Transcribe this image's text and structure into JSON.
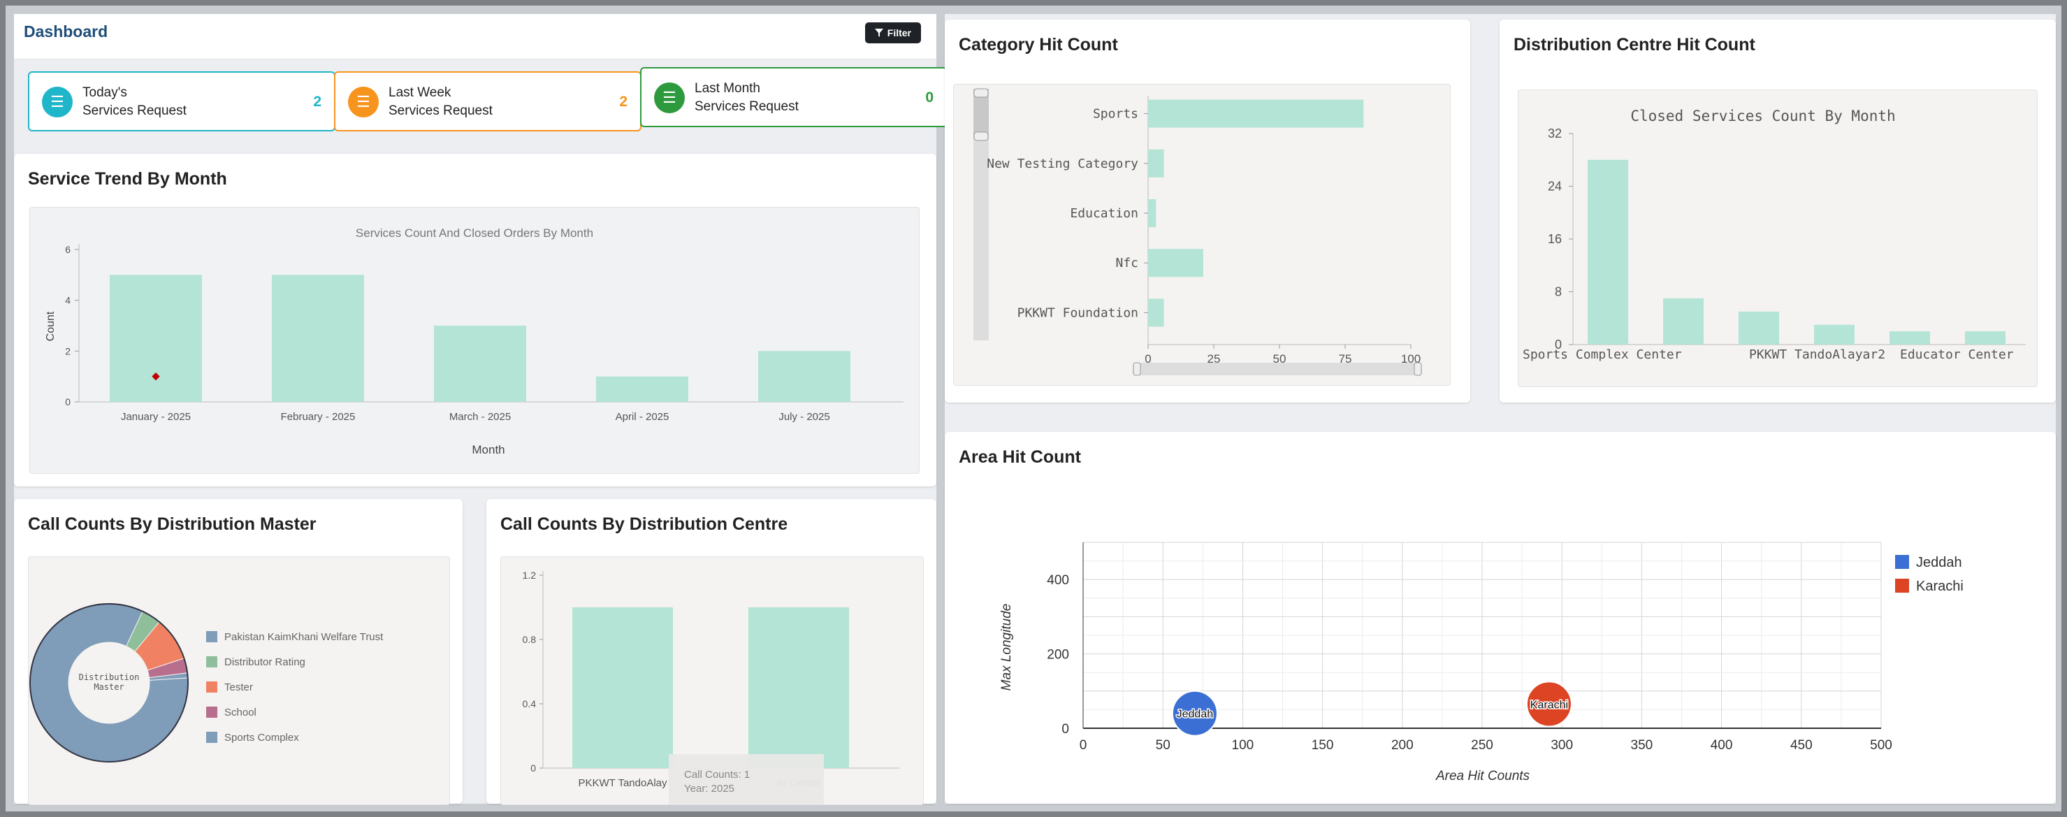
{
  "dashboard": {
    "title": "Dashboard",
    "filter_label": "Filter"
  },
  "stats": [
    {
      "line1": "Today's",
      "line2": "Services Request",
      "value": "2",
      "color": "#1eb6c8"
    },
    {
      "line1": "Last Week",
      "line2": "Services Request",
      "value": "2",
      "color": "#f7941d"
    },
    {
      "line1": "Last Month",
      "line2": "Services Request",
      "value": "0",
      "color": "#2e9a3e"
    }
  ],
  "service_trend": {
    "card_title": "Service Trend By Month",
    "chart_data": {
      "type": "bar",
      "title": "Services Count And Closed Orders By Month",
      "xlabel": "Month",
      "ylabel": "Count",
      "categories": [
        "January - 2025",
        "February - 2025",
        "March - 2025",
        "April - 2025",
        "July - 2025"
      ],
      "values": [
        5,
        5,
        3,
        1,
        2
      ],
      "marker": {
        "category": "January - 2025",
        "value": 1,
        "color": "#c00000"
      },
      "ylim": [
        0,
        6
      ],
      "yticks": [
        0,
        2,
        4,
        6
      ],
      "bar_color": "#b3e4d6"
    }
  },
  "call_master": {
    "card_title": "Call Counts By Distribution Master",
    "chart_data": {
      "type": "pie",
      "center_label_line1": "Distribution",
      "center_label_line2": "Master",
      "slices": [
        {
          "name": "Pakistan KaimKhani Welfare Trust",
          "value": 83,
          "color": "#7f9cb8"
        },
        {
          "name": "Distributor Rating",
          "value": 4,
          "color": "#8fbf9a"
        },
        {
          "name": "Tester",
          "value": 9,
          "color": "#f08263"
        },
        {
          "name": "School",
          "value": 3,
          "color": "#b86f8e"
        },
        {
          "name": "Sports Complex",
          "value": 1,
          "color": "#7f9cb8"
        }
      ]
    }
  },
  "call_centre": {
    "card_title": "Call Counts By Distribution Centre",
    "chart_data": {
      "type": "bar",
      "categories": [
        "PKKWT TandoAlayar2",
        "Educator Center"
      ],
      "category_labels": [
        "PKKWT TandoAlay",
        "er Center"
      ],
      "values": [
        1,
        1
      ],
      "ylim": [
        0,
        1.2
      ],
      "yticks": [
        0,
        0.4,
        0.8,
        1.2
      ],
      "bar_color": "#b3e4d6"
    },
    "tooltip": {
      "line1": "Call Counts: 1",
      "line2": "Year: 2025"
    }
  },
  "category_hit": {
    "card_title": "Category Hit Count",
    "chart_data": {
      "type": "bar",
      "orientation": "horizontal",
      "categories": [
        "Sports",
        "New Testing Category",
        "Education",
        "Nfc",
        "PKKWT Foundation"
      ],
      "values": [
        82,
        6,
        3,
        21,
        6
      ],
      "xlim": [
        0,
        100
      ],
      "xticks": [
        0,
        25,
        50,
        75,
        100
      ],
      "bar_color": "#b3e4d6"
    }
  },
  "centre_hit": {
    "card_title": "Distribution Centre Hit Count",
    "chart_data": {
      "type": "bar",
      "title": "Closed Services Count By Month",
      "values": [
        28,
        7,
        5,
        3,
        2,
        2
      ],
      "tick_labels": [
        "Sports Complex Center",
        "PKKWT TandoAlayar2",
        "Educator Center"
      ],
      "ylim": [
        0,
        32
      ],
      "yticks": [
        0,
        8,
        16,
        24,
        32
      ],
      "bar_color": "#b3e4d6"
    }
  },
  "area_hit": {
    "card_title": "Area Hit Count",
    "chart_data": {
      "type": "scatter",
      "xlabel": "Area Hit Counts",
      "ylabel": "Max Longitude",
      "xlim": [
        0,
        500
      ],
      "ylim": [
        0,
        500
      ],
      "xticks": [
        0,
        50,
        100,
        150,
        200,
        250,
        300,
        350,
        400,
        450,
        500
      ],
      "yticks": [
        0,
        200,
        400
      ],
      "series": [
        {
          "name": "Jeddah",
          "x": 70,
          "y": 40,
          "color": "#3b6fd4"
        },
        {
          "name": "Karachi",
          "x": 292,
          "y": 65,
          "color": "#dc4424"
        }
      ],
      "legend": "top-right"
    }
  }
}
